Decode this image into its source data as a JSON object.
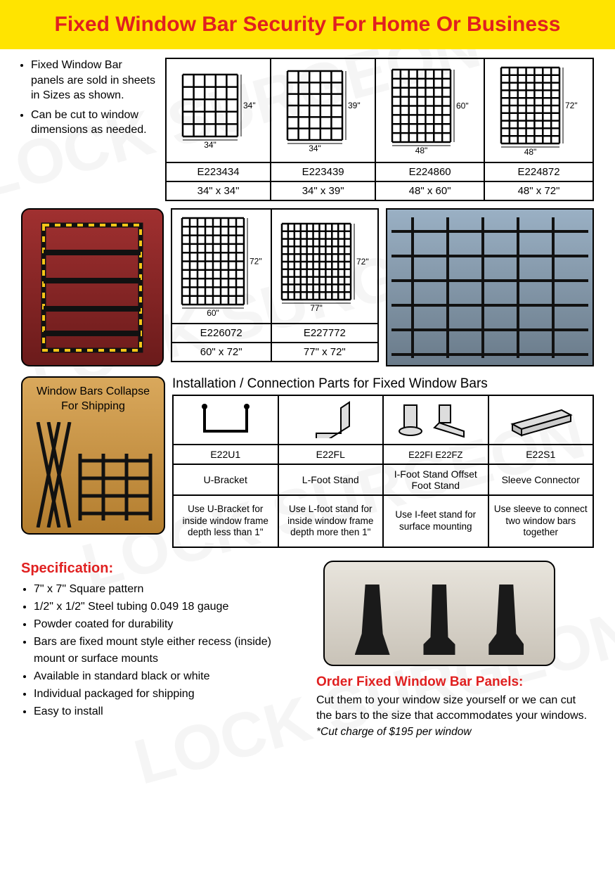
{
  "title": "Fixed Window Bar Security For Home Or Business",
  "colors": {
    "accent_red": "#e02020",
    "title_bg": "#ffe400",
    "border": "#000000"
  },
  "intro_bullets": [
    "Fixed Window Bar panels are sold in sheets in Sizes as shown.",
    "Can be cut to window dimensions as needed."
  ],
  "sizes_row1": [
    {
      "code": "E223434",
      "dims": "34\" x 34\"",
      "w": "34\"",
      "h": "34\"",
      "cols": 5,
      "rows": 5
    },
    {
      "code": "E223439",
      "dims": "34\" x 39\"",
      "w": "34\"",
      "h": "39\"",
      "cols": 5,
      "rows": 6
    },
    {
      "code": "E224860",
      "dims": "48\" x 60\"",
      "w": "48\"",
      "h": "60\"",
      "cols": 7,
      "rows": 8
    },
    {
      "code": "E224872",
      "dims": "48\" x 72\"",
      "w": "48\"",
      "h": "72\"",
      "cols": 7,
      "rows": 10
    }
  ],
  "sizes_row2": [
    {
      "code": "E226072",
      "dims": "60\" x 72\"",
      "w": "60\"",
      "h": "72\"",
      "cols": 8,
      "rows": 10
    },
    {
      "code": "E227772",
      "dims": "77\" x 72\"",
      "w": "77\"",
      "h": "72\"",
      "cols": 11,
      "rows": 10
    }
  ],
  "collapse_caption": "Window Bars Collapse For Shipping",
  "parts_title": "Installation / Connection Parts for Fixed Window Bars",
  "parts": [
    {
      "code": "E22U1",
      "name": "U-Bracket",
      "desc": "Use U-Bracket for inside window frame depth less than 1\""
    },
    {
      "code": "E22FL",
      "name": "L-Foot Stand",
      "desc": "Use L-foot stand for inside window frame depth more then 1\""
    },
    {
      "code": "E22FI    E22FZ",
      "name": "I-Foot Stand Offset Foot Stand",
      "desc": "Use I-feet stand for surface mounting"
    },
    {
      "code": "E22S1",
      "name": "Sleeve Connector",
      "desc": "Use sleeve to connect two window bars together"
    }
  ],
  "spec_title": "Specification:",
  "specs": [
    "7\" x 7\" Square pattern",
    "1/2\" x 1/2\" Steel tubing 0.049  18 gauge",
    "Powder coated for durability",
    "Bars are fixed mount style either recess (inside) mount or surface mounts",
    "Available in standard black or white",
    "Individual packaged for shipping",
    "Easy to install"
  ],
  "order_title": "Order Fixed Window Bar Panels:",
  "order_text": "Cut them to your window size yourself or we can cut the bars to the size that accommodates your windows.",
  "order_note": "*Cut charge of $195 per window"
}
